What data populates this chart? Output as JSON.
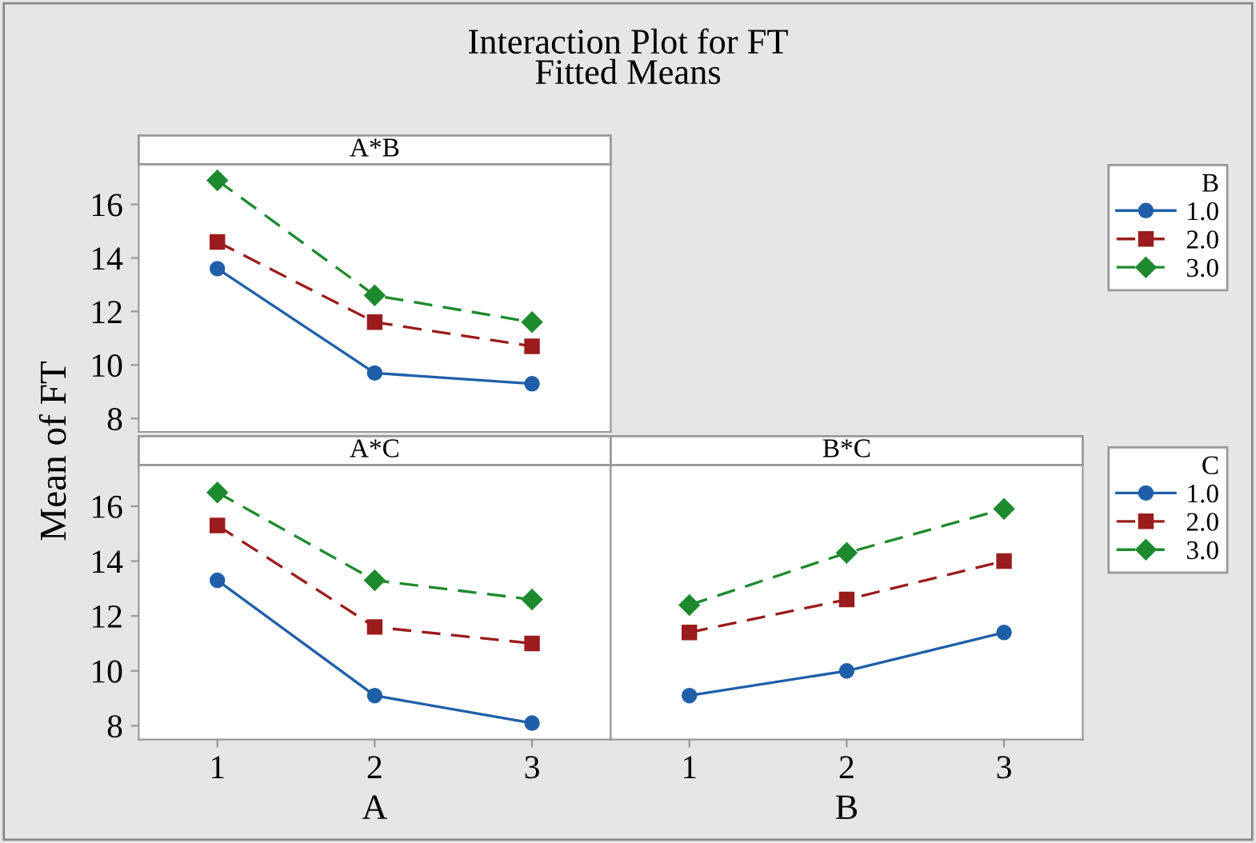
{
  "chart_data": [
    {
      "type": "line",
      "title": "A*B",
      "annotations": [
        "Interaction Plot for FT",
        "Fitted Means"
      ],
      "ylabel": "Mean of FT",
      "legend_title": "B",
      "legend": "right",
      "tick_labels": "y",
      "x": [
        1,
        2,
        3
      ],
      "xlim": [
        0.5,
        3.5
      ],
      "ylim": [
        7.5,
        17.5
      ],
      "yticks": [
        8,
        10,
        12,
        14,
        16
      ],
      "grid": false,
      "series": [
        {
          "name": "1.0",
          "color": "#1f5fa8",
          "marker": "circle",
          "line_style": "solid",
          "values": [
            13.6,
            9.7,
            9.3
          ]
        },
        {
          "name": "2.0",
          "color": "#9b1c1c",
          "marker": "square",
          "line_style": "dashed",
          "values": [
            14.6,
            11.6,
            10.7
          ]
        },
        {
          "name": "3.0",
          "color": "#1e8a2e",
          "marker": "diamond",
          "line_style": "dashed",
          "values": [
            16.9,
            12.6,
            11.6
          ]
        }
      ]
    },
    {
      "type": "line",
      "title": "A*C",
      "xlabel": "A",
      "legend_title": "C",
      "legend": "right",
      "x": [
        1,
        2,
        3
      ],
      "xlim": [
        0.5,
        3.5
      ],
      "xticks": [
        1,
        2,
        3
      ],
      "ylim": [
        7.5,
        17.5
      ],
      "yticks": [
        8,
        10,
        12,
        14,
        16
      ],
      "grid": false,
      "series": [
        {
          "name": "1.0",
          "color": "#1f5fa8",
          "marker": "circle",
          "line_style": "solid",
          "values": [
            13.3,
            9.1,
            8.1
          ]
        },
        {
          "name": "2.0",
          "color": "#9b1c1c",
          "marker": "square",
          "line_style": "dashed",
          "values": [
            15.3,
            11.6,
            11.0
          ]
        },
        {
          "name": "3.0",
          "color": "#1e8a2e",
          "marker": "diamond",
          "line_style": "dashed",
          "values": [
            16.5,
            13.3,
            12.6
          ]
        }
      ]
    },
    {
      "type": "line",
      "title": "B*C",
      "xlabel": "B",
      "tick_labels": "x",
      "x": [
        1,
        2,
        3
      ],
      "xlim": [
        0.5,
        3.5
      ],
      "xticks": [
        1,
        2,
        3
      ],
      "ylim": [
        7.5,
        17.5
      ],
      "grid": false,
      "series": [
        {
          "name": "1.0",
          "color": "#1f5fa8",
          "marker": "circle",
          "line_style": "solid",
          "values": [
            9.1,
            10.0,
            11.4
          ]
        },
        {
          "name": "2.0",
          "color": "#9b1c1c",
          "marker": "square",
          "line_style": "dashed",
          "values": [
            11.4,
            12.6,
            14.0
          ]
        },
        {
          "name": "3.0",
          "color": "#1e8a2e",
          "marker": "diamond",
          "line_style": "dashed",
          "values": [
            12.4,
            14.3,
            15.9
          ]
        }
      ]
    }
  ]
}
